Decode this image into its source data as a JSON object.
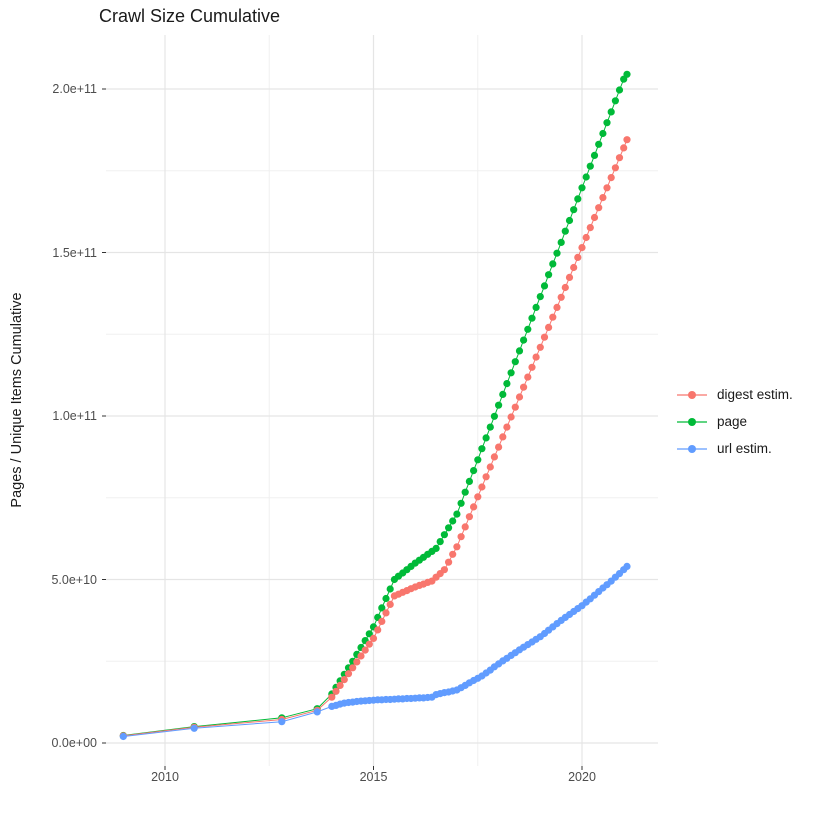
{
  "chart": {
    "title": "Crawl Size Cumulative",
    "ylabel": "Pages / Unique Items Cumulative",
    "xlabel": ""
  },
  "legend": {
    "items": [
      {
        "label": "digest estim.",
        "color": "#F8766D"
      },
      {
        "label": "page",
        "color": "#00BA38"
      },
      {
        "label": "url estim.",
        "color": "#619CFF"
      }
    ]
  },
  "chart_data": {
    "type": "scatter",
    "title": "Crawl Size Cumulative",
    "xlabel": "",
    "ylabel": "Pages / Unique Items Cumulative",
    "unit_note": "values_e9 are counts in billions (multiply by 1e9)",
    "grid": true,
    "legend_position": "right",
    "x_axis": {
      "ticks": [
        2010,
        2015,
        2020
      ],
      "minor_ticks": [
        2012.5,
        2017.5
      ],
      "range": [
        2008.55,
        2021.85
      ]
    },
    "y_axis": {
      "tick_labels": [
        "0.0e+00",
        "5.0e+10",
        "1.0e+11",
        "1.5e+11",
        "2.0e+11"
      ],
      "tick_values_e9": [
        0,
        50,
        100,
        150,
        200
      ],
      "minor_values_e9": [
        25,
        75,
        125,
        175
      ],
      "range_e9": [
        -10.7,
        216.5
      ]
    },
    "x_years": [
      2009,
      2010.7,
      2012.8,
      2013.65,
      2014.0,
      2014.1,
      2014.2,
      2014.3,
      2014.4,
      2014.5,
      2014.6,
      2014.7,
      2014.8,
      2014.9,
      2015.0,
      2015.1,
      2015.2,
      2015.3,
      2015.4,
      2015.5,
      2015.6,
      2015.7,
      2015.8,
      2015.9,
      2016.0,
      2016.1,
      2016.2,
      2016.3,
      2016.4,
      2016.5,
      2016.6,
      2016.7,
      2016.8,
      2016.9,
      2017.0,
      2017.1,
      2017.2,
      2017.3,
      2017.4,
      2017.5,
      2017.6,
      2017.7,
      2017.8,
      2017.9,
      2018.0,
      2018.1,
      2018.2,
      2018.3,
      2018.4,
      2018.5,
      2018.6,
      2018.7,
      2018.8,
      2018.9,
      2019.0,
      2019.1,
      2019.2,
      2019.3,
      2019.4,
      2019.5,
      2019.6,
      2019.7,
      2019.8,
      2019.9,
      2020.0,
      2020.1,
      2020.2,
      2020.3,
      2020.4,
      2020.5,
      2020.6,
      2020.7,
      2020.8,
      2020.9,
      2021.0,
      2021.08
    ],
    "series": [
      {
        "name": "digest estim.",
        "color": "#F8766D",
        "values_e9": [
          2.2,
          4.8,
          7.2,
          10.0,
          14.0,
          15.8,
          17.6,
          19.4,
          21.2,
          23.0,
          24.8,
          26.6,
          28.4,
          30.2,
          32.0,
          34.6,
          37.2,
          39.8,
          42.4,
          45.0,
          45.5,
          46.1,
          46.6,
          47.2,
          47.7,
          48.2,
          48.6,
          49.1,
          49.5,
          50.7,
          51.8,
          53.0,
          55.3,
          57.7,
          60.0,
          63.1,
          66.1,
          69.2,
          72.2,
          75.3,
          78.3,
          81.4,
          84.4,
          87.5,
          90.5,
          93.6,
          96.6,
          99.7,
          102.7,
          105.8,
          108.8,
          111.9,
          114.9,
          118.0,
          121.0,
          124.1,
          127.1,
          130.2,
          133.2,
          136.3,
          139.3,
          142.4,
          145.4,
          148.5,
          151.5,
          154.6,
          157.6,
          160.7,
          163.7,
          166.8,
          169.8,
          172.9,
          175.9,
          179.0,
          182.0,
          184.5
        ]
      },
      {
        "name": "page",
        "color": "#00BA38",
        "values_e9": [
          2.3,
          5.0,
          7.7,
          10.5,
          15.0,
          17.0,
          19.0,
          21.0,
          23.0,
          25.0,
          27.1,
          29.2,
          31.3,
          33.4,
          35.5,
          38.4,
          41.3,
          44.2,
          47.1,
          50.0,
          51.0,
          52.0,
          53.0,
          54.0,
          55.0,
          55.9,
          56.8,
          57.7,
          58.6,
          59.5,
          61.6,
          63.7,
          65.8,
          67.9,
          70.0,
          73.3,
          76.7,
          80.0,
          83.3,
          86.6,
          90.0,
          93.3,
          96.6,
          99.9,
          103.3,
          106.6,
          109.9,
          113.2,
          116.6,
          119.9,
          123.2,
          126.5,
          129.9,
          133.2,
          136.5,
          139.8,
          143.2,
          146.5,
          149.8,
          153.1,
          156.5,
          159.8,
          163.1,
          166.4,
          169.8,
          173.1,
          176.4,
          179.7,
          183.1,
          186.4,
          189.7,
          193.0,
          196.4,
          199.7,
          203.0,
          204.5
        ]
      },
      {
        "name": "url estim.",
        "color": "#619CFF",
        "values_e9": [
          2.0,
          4.5,
          6.5,
          9.5,
          11.2,
          11.5,
          11.9,
          12.2,
          12.4,
          12.5,
          12.7,
          12.8,
          12.9,
          13.0,
          13.1,
          13.2,
          13.2,
          13.3,
          13.3,
          13.4,
          13.5,
          13.5,
          13.6,
          13.6,
          13.7,
          13.8,
          13.8,
          13.9,
          14.0,
          14.8,
          15.1,
          15.4,
          15.6,
          15.9,
          16.2,
          16.9,
          17.6,
          18.4,
          19.1,
          19.8,
          20.5,
          21.4,
          22.3,
          23.3,
          24.2,
          25.1,
          25.9,
          26.8,
          27.6,
          28.5,
          29.3,
          30.1,
          30.9,
          31.7,
          32.5,
          33.5,
          34.5,
          35.5,
          36.5,
          37.5,
          38.4,
          39.3,
          40.2,
          41.1,
          42.0,
          43.1,
          44.1,
          45.2,
          46.3,
          47.4,
          48.4,
          49.5,
          50.7,
          51.8,
          53.0,
          54.0
        ]
      }
    ],
    "draw_order": [
      1,
      0,
      2
    ]
  }
}
